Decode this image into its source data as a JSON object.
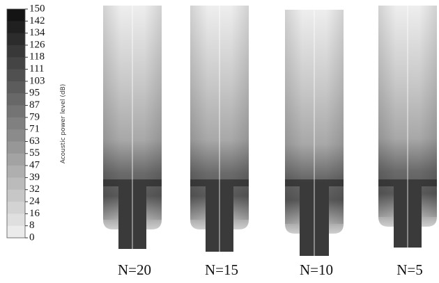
{
  "colorbar": {
    "label": "Acoustic power level (dB)",
    "ticks": [
      "150",
      "142",
      "134",
      "126",
      "118",
      "111",
      "103",
      "95",
      "87",
      "79",
      "71",
      "63",
      "55",
      "47",
      "39",
      "32",
      "24",
      "16",
      "8",
      "0"
    ]
  },
  "panels": [
    {
      "label": "N=20"
    },
    {
      "label": "N=15"
    },
    {
      "label": "N=10"
    },
    {
      "label": "N=5"
    }
  ]
}
